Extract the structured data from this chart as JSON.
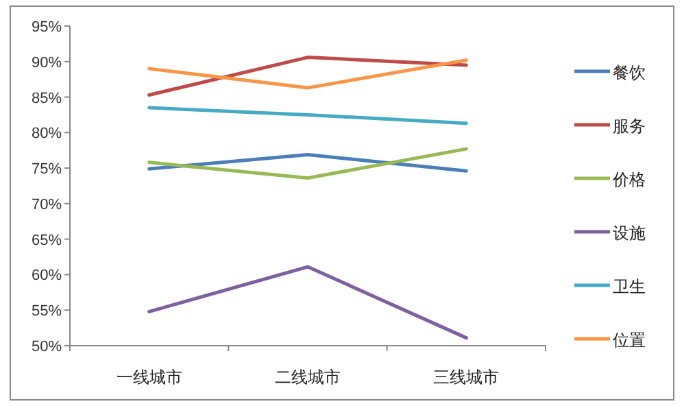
{
  "chart_data": {
    "type": "line",
    "categories": [
      "一线城市",
      "二线城市",
      "三线城市"
    ],
    "series": [
      {
        "name": "餐饮",
        "color": "#4a7ebb",
        "values": [
          74.9,
          76.9,
          74.6
        ]
      },
      {
        "name": "服务",
        "color": "#be4b48",
        "values": [
          85.3,
          90.6,
          89.5
        ]
      },
      {
        "name": "价格",
        "color": "#98b954",
        "values": [
          75.8,
          73.6,
          77.7
        ]
      },
      {
        "name": "设施",
        "color": "#7d60a0",
        "values": [
          54.8,
          61.1,
          51.1
        ]
      },
      {
        "name": "卫生",
        "color": "#46aac5",
        "values": [
          83.5,
          82.5,
          81.3
        ]
      },
      {
        "name": "位置",
        "color": "#f79646",
        "values": [
          89.0,
          86.3,
          90.2
        ]
      }
    ],
    "ylim": [
      50,
      95
    ],
    "yticks": [
      {
        "value": 50,
        "label": "50%"
      },
      {
        "value": 55,
        "label": "55%"
      },
      {
        "value": 60,
        "label": "60%"
      },
      {
        "value": 65,
        "label": "65%"
      },
      {
        "value": 70,
        "label": "70%"
      },
      {
        "value": 75,
        "label": "75%"
      },
      {
        "value": 80,
        "label": "80%"
      },
      {
        "value": 85,
        "label": "85%"
      },
      {
        "value": 90,
        "label": "90%"
      },
      {
        "value": 95,
        "label": "95%"
      }
    ],
    "legend": "right",
    "grid": false,
    "marker": "none",
    "line_style": "solid"
  }
}
